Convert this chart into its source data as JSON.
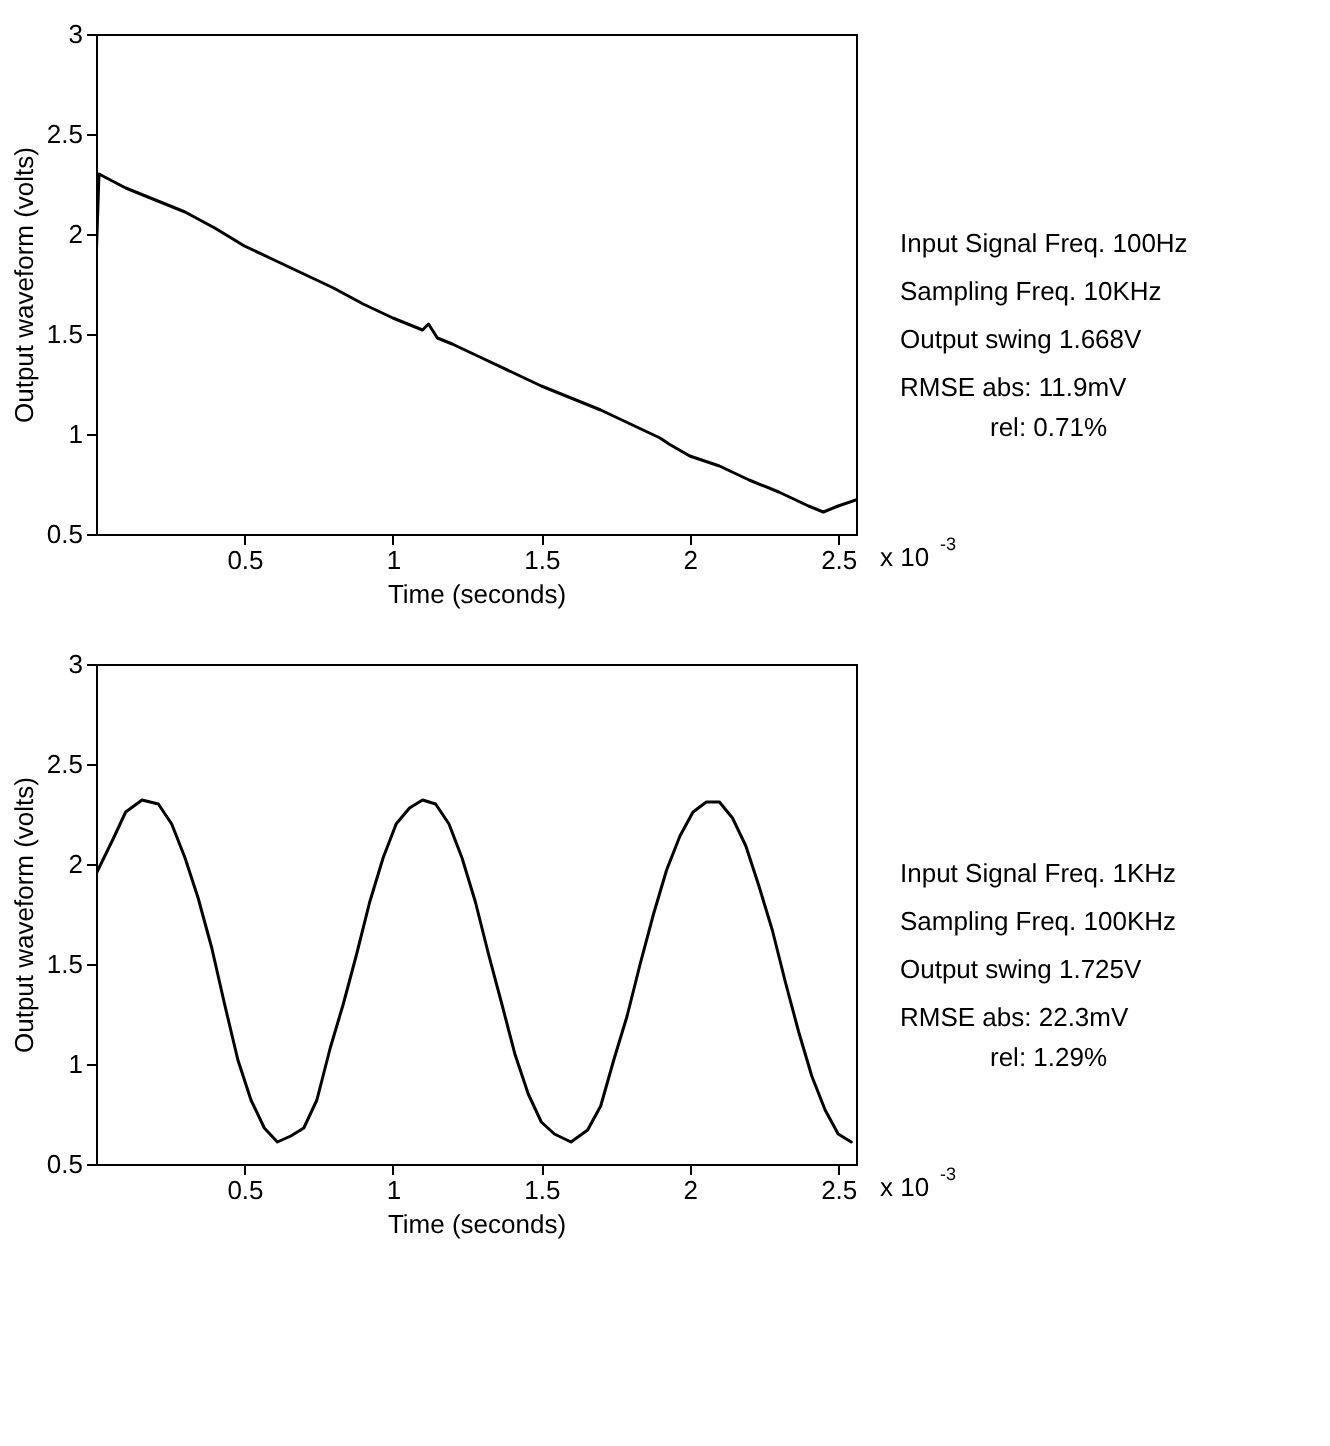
{
  "chart_data": [
    {
      "type": "line",
      "xlabel": "Time (seconds)",
      "ylabel": "Output waveform (volts)",
      "grid": false,
      "line_style": "solid",
      "xlim": [
        0,
        2.56
      ],
      "ylim": [
        0.5,
        3
      ],
      "xticks": [
        0.5,
        1,
        1.5,
        2,
        2.5
      ],
      "yticks": [
        0.5,
        1,
        1.5,
        2,
        2.5,
        3
      ],
      "annotations": [
        "x 10$^{-3}$",
        "Input Signal Freq. 100Hz",
        "Sampling Freq. 10KHz",
        "Output swing 1.668V",
        "RMSE abs: 11.9mV",
        "rel: 0.71%"
      ],
      "series": [
        {
          "color": "#000000",
          "x": [
            0,
            0.01,
            0.1,
            0.2,
            0.3,
            0.4,
            0.5,
            0.6,
            0.7,
            0.8,
            0.9,
            1.0,
            1.1,
            1.12,
            1.15,
            1.2,
            1.3,
            1.4,
            1.5,
            1.6,
            1.7,
            1.8,
            1.9,
            1.93,
            2.0,
            2.1,
            2.2,
            2.3,
            2.4,
            2.45,
            2.5,
            2.56
          ],
          "values": [
            1.85,
            2.3,
            2.23,
            2.17,
            2.11,
            2.03,
            1.94,
            1.87,
            1.8,
            1.73,
            1.65,
            1.58,
            1.52,
            1.55,
            1.48,
            1.45,
            1.38,
            1.31,
            1.24,
            1.18,
            1.12,
            1.05,
            0.98,
            0.95,
            0.89,
            0.84,
            0.77,
            0.71,
            0.64,
            0.61,
            0.64,
            0.67
          ]
        }
      ]
    },
    {
      "type": "line",
      "xlabel": "Time (seconds)",
      "ylabel": "Output waveform (volts)",
      "grid": false,
      "line_style": "solid",
      "xlim": [
        0,
        2.56
      ],
      "ylim": [
        0.5,
        3
      ],
      "xticks": [
        0.5,
        1,
        1.5,
        2,
        2.5
      ],
      "yticks": [
        0.5,
        1,
        1.5,
        2,
        2.5,
        3
      ],
      "annotations": [
        "x 10$^{-3}$",
        "Input Signal Freq. 1KHz",
        "Sampling Freq. 100KHz",
        "Output swing 1.725V",
        "RMSE abs: 22.3mV",
        "rel: 1.29%"
      ],
      "series": [
        {
          "color": "#000000",
          "x": [
            0,
            0.056,
            0.1,
            0.155,
            0.21,
            0.255,
            0.3,
            0.344,
            0.39,
            0.433,
            0.478,
            0.522,
            0.567,
            0.611,
            0.656,
            0.7,
            0.744,
            0.789,
            0.833,
            0.878,
            0.922,
            0.967,
            1.011,
            1.056,
            1.1,
            1.144,
            1.189,
            1.233,
            1.278,
            1.322,
            1.367,
            1.411,
            1.456,
            1.5,
            1.544,
            1.6,
            1.656,
            1.7,
            1.744,
            1.789,
            1.833,
            1.878,
            1.922,
            1.967,
            2.011,
            2.056,
            2.1,
            2.144,
            2.189,
            2.233,
            2.278,
            2.322,
            2.367,
            2.411,
            2.456,
            2.5,
            2.544
          ],
          "values": [
            1.95,
            2.12,
            2.26,
            2.32,
            2.3,
            2.2,
            2.03,
            1.83,
            1.58,
            1.3,
            1.02,
            0.82,
            0.68,
            0.61,
            0.64,
            0.68,
            0.82,
            1.08,
            1.3,
            1.55,
            1.81,
            2.03,
            2.2,
            2.28,
            2.32,
            2.3,
            2.2,
            2.03,
            1.81,
            1.55,
            1.3,
            1.05,
            0.85,
            0.71,
            0.65,
            0.61,
            0.67,
            0.79,
            1.02,
            1.24,
            1.5,
            1.75,
            1.97,
            2.14,
            2.26,
            2.31,
            2.31,
            2.23,
            2.09,
            1.89,
            1.67,
            1.41,
            1.16,
            0.94,
            0.77,
            0.65,
            0.61
          ]
        }
      ]
    }
  ]
}
